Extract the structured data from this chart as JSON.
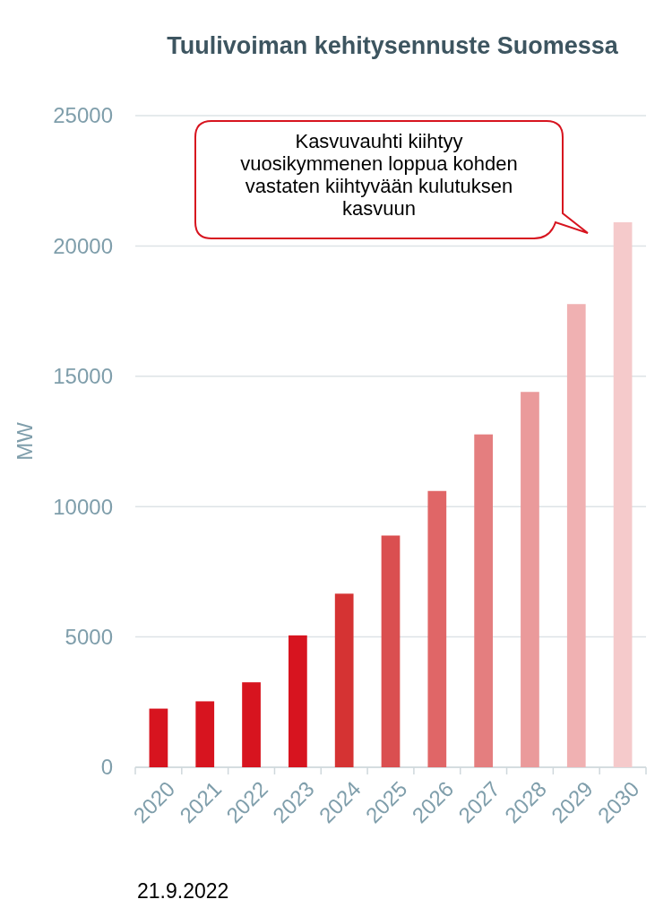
{
  "chart_data": {
    "type": "bar",
    "title": "Tuulivoiman kehitysennuste Suomessa",
    "ylabel": "MW",
    "categories": [
      "2020",
      "2021",
      "2022",
      "2023",
      "2024",
      "2025",
      "2026",
      "2027",
      "2028",
      "2029",
      "2030"
    ],
    "values": [
      2250,
      2530,
      3260,
      5060,
      6660,
      8890,
      10600,
      12770,
      14400,
      17770,
      20910
    ],
    "colors": [
      "#d7141f",
      "#d7141f",
      "#d7141f",
      "#d7141f",
      "#d53333",
      "#da4f50",
      "#e06667",
      "#e47e7f",
      "#ea9a9b",
      "#f0b1b2",
      "#f5cacb"
    ],
    "ylim": [
      0,
      25000
    ],
    "yticks": [
      0,
      5000,
      10000,
      15000,
      20000,
      25000
    ],
    "grid": "y",
    "annotations": [
      "Kasvuvauhti kiihtyy vuosikymmenen loppua kohden vastaten kiihtyvään kulutuksen kasvuun",
      "21.9.2022"
    ]
  }
}
